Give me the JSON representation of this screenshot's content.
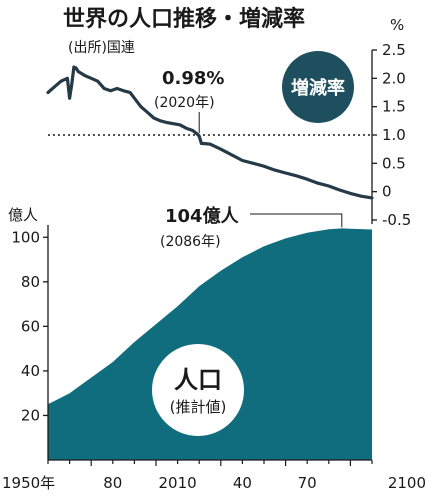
{
  "header": {
    "title": "世界の人口推移・増減率",
    "source": "(出所)国連"
  },
  "colors": {
    "growth_line": "#243a47",
    "population_area": "#0f6d7e",
    "badge_fill": "#1e4f5f",
    "axis": "#1a1a1a"
  },
  "growth_panel": {
    "unit_label": "%",
    "badge_label": "増減率",
    "annotation_value": "0.98%",
    "annotation_year": "(2020年)",
    "y_ticks": [
      "2.5",
      "2.0",
      "1.5",
      "1.0",
      "0.5",
      "0",
      "-0.5"
    ]
  },
  "population_panel": {
    "unit_label": "億人",
    "peak_value": "104億人",
    "peak_year": "(2086年)",
    "badge_title": "人口",
    "badge_sub": "(推計値)",
    "y_ticks": [
      "100",
      "80",
      "60",
      "40",
      "20"
    ]
  },
  "x_axis": {
    "tick_labels": [
      "1950年",
      "80",
      "2010",
      "40",
      "70",
      "2100"
    ]
  },
  "chart_data": [
    {
      "type": "line",
      "series": [
        {
          "name": "増減率",
          "unit": "%",
          "x": [
            1950,
            1953,
            1956,
            1959,
            1960,
            1961,
            1962,
            1963,
            1964,
            1967,
            1970,
            1973,
            1976,
            1979,
            1982,
            1985,
            1988,
            1990,
            1993,
            1996,
            1999,
            2002,
            2005,
            2008,
            2011,
            2014,
            2017,
            2019,
            2020,
            2021,
            2022,
            2025,
            2030,
            2035,
            2040,
            2045,
            2050,
            2055,
            2060,
            2065,
            2070,
            2075,
            2080,
            2085,
            2090,
            2095,
            2100
          ],
          "values": [
            1.75,
            1.85,
            1.95,
            2.0,
            1.65,
            1.9,
            2.2,
            2.18,
            2.12,
            2.05,
            2.0,
            1.95,
            1.82,
            1.78,
            1.82,
            1.78,
            1.75,
            1.65,
            1.5,
            1.4,
            1.3,
            1.25,
            1.22,
            1.2,
            1.18,
            1.12,
            1.08,
            1.02,
            0.98,
            0.85,
            0.85,
            0.84,
            0.75,
            0.65,
            0.55,
            0.5,
            0.45,
            0.38,
            0.33,
            0.28,
            0.22,
            0.15,
            0.1,
            0.03,
            -0.03,
            -0.08,
            -0.11
          ]
        }
      ],
      "xlim": [
        1950,
        2100
      ],
      "ylim": [
        -0.5,
        2.5
      ],
      "reference_line": 1.0,
      "annotation": {
        "x": 2020,
        "y": 0.98
      }
    },
    {
      "type": "area",
      "series": [
        {
          "name": "人口",
          "unit": "億人",
          "x": [
            1950,
            1960,
            1970,
            1980,
            1990,
            2000,
            2010,
            2020,
            2030,
            2040,
            2050,
            2060,
            2070,
            2080,
            2086,
            2090,
            2100
          ],
          "values": [
            25,
            30,
            37,
            44,
            53,
            61,
            69,
            78,
            85,
            91,
            96,
            99.5,
            102,
            103.6,
            104,
            103.8,
            103.5
          ]
        }
      ],
      "xlim": [
        1950,
        2100
      ],
      "ylim": [
        0,
        110
      ],
      "annotation": {
        "x": 2086,
        "y": 104
      }
    }
  ]
}
